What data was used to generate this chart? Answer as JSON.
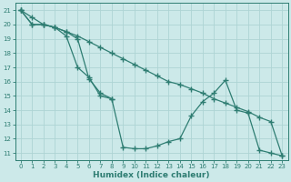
{
  "xlabel": "Humidex (Indice chaleur)",
  "xlim": [
    -0.5,
    23.5
  ],
  "ylim": [
    10.5,
    21.5
  ],
  "xticks": [
    0,
    1,
    2,
    3,
    4,
    5,
    6,
    7,
    8,
    9,
    10,
    11,
    12,
    13,
    14,
    15,
    16,
    17,
    18,
    19,
    20,
    21,
    22,
    23
  ],
  "yticks": [
    11,
    12,
    13,
    14,
    15,
    16,
    17,
    18,
    19,
    20,
    21
  ],
  "bg_color": "#cce9e9",
  "line_color": "#2e7d72",
  "grid_color": "#aed4d4",
  "line1": {
    "x": [
      0,
      1,
      2,
      3,
      4,
      5,
      6,
      7,
      8,
      9,
      10,
      11,
      12,
      13,
      14,
      15,
      16,
      17,
      18,
      19,
      20,
      21,
      22,
      23
    ],
    "y": [
      21,
      20.5,
      20,
      19.8,
      19.5,
      19.2,
      18.8,
      18.4,
      18.0,
      17.6,
      17.2,
      16.8,
      16.4,
      16.0,
      15.8,
      15.5,
      15.2,
      14.8,
      14.5,
      14.2,
      13.9,
      13.5,
      13.2,
      10.8
    ]
  },
  "line2": {
    "x": [
      0,
      1,
      2,
      3,
      4,
      5,
      6,
      7,
      8,
      9,
      10,
      11,
      12,
      13,
      14,
      15,
      16,
      17,
      18,
      19,
      20,
      21,
      22,
      23
    ],
    "y": [
      21,
      20,
      20,
      19.8,
      19.5,
      19.0,
      16.2,
      15.2,
      14.8,
      11.4,
      11.3,
      11.3,
      11.5,
      11.8,
      12.0,
      13.6,
      14.6,
      15.2,
      16.1,
      14.0,
      13.8,
      11.2,
      11.0,
      10.8
    ]
  },
  "line3": {
    "x": [
      0,
      1,
      2,
      3,
      4,
      5,
      6,
      7,
      8
    ],
    "y": [
      21,
      20,
      20,
      19.8,
      19.2,
      17.0,
      16.3,
      15.0,
      14.8
    ]
  }
}
